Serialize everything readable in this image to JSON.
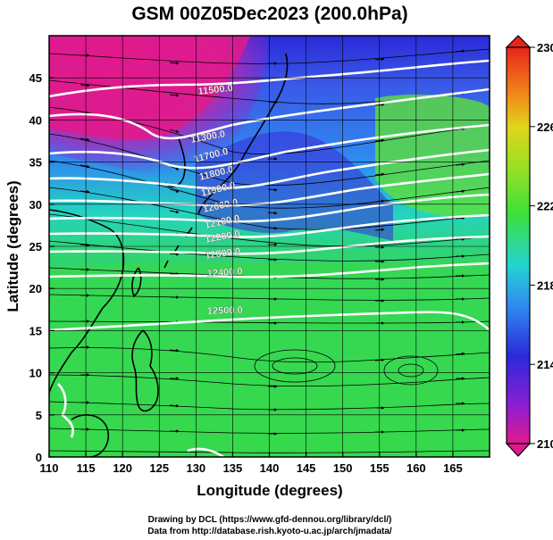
{
  "title": "GSM 00Z05Dec2023 (200.0hPa)",
  "axes": {
    "xlabel": "Longitude (degrees)",
    "ylabel": "Latitude  (degrees)",
    "xlim": [
      110,
      170
    ],
    "ylim": [
      0,
      50
    ],
    "xticks": [
      110,
      115,
      120,
      125,
      130,
      135,
      140,
      145,
      150,
      155,
      160,
      165
    ],
    "yticks": [
      0,
      5,
      10,
      15,
      20,
      25,
      30,
      35,
      40,
      45
    ]
  },
  "colorbar": {
    "min": 210,
    "max": 230,
    "labels": [
      "230",
      "226",
      "222",
      "218",
      "214",
      "210"
    ],
    "label_values": [
      230,
      226,
      222,
      218,
      214,
      210
    ],
    "colors": [
      "#e01a8c",
      "#8a1fd4",
      "#2a2ad8",
      "#2f8cf0",
      "#24d4d0",
      "#2ed45a",
      "#3ce03a",
      "#9ce024",
      "#e0d41a",
      "#f08a1a",
      "#e8241a"
    ]
  },
  "contours": {
    "labels": [
      "11500.0",
      "11300.0",
      "11700.0",
      "11800.0",
      "11900.0",
      "12000.0",
      "12100.0",
      "12200.0",
      "12300.0",
      "12400.0",
      "12500.0"
    ]
  },
  "credits": {
    "line1": "Drawing by DCL (https://www.gfd-dennou.org/library/dcl/)",
    "line2": "Data from http://database.rish.kyoto-u.ac.jp/arch/jmadata/"
  }
}
